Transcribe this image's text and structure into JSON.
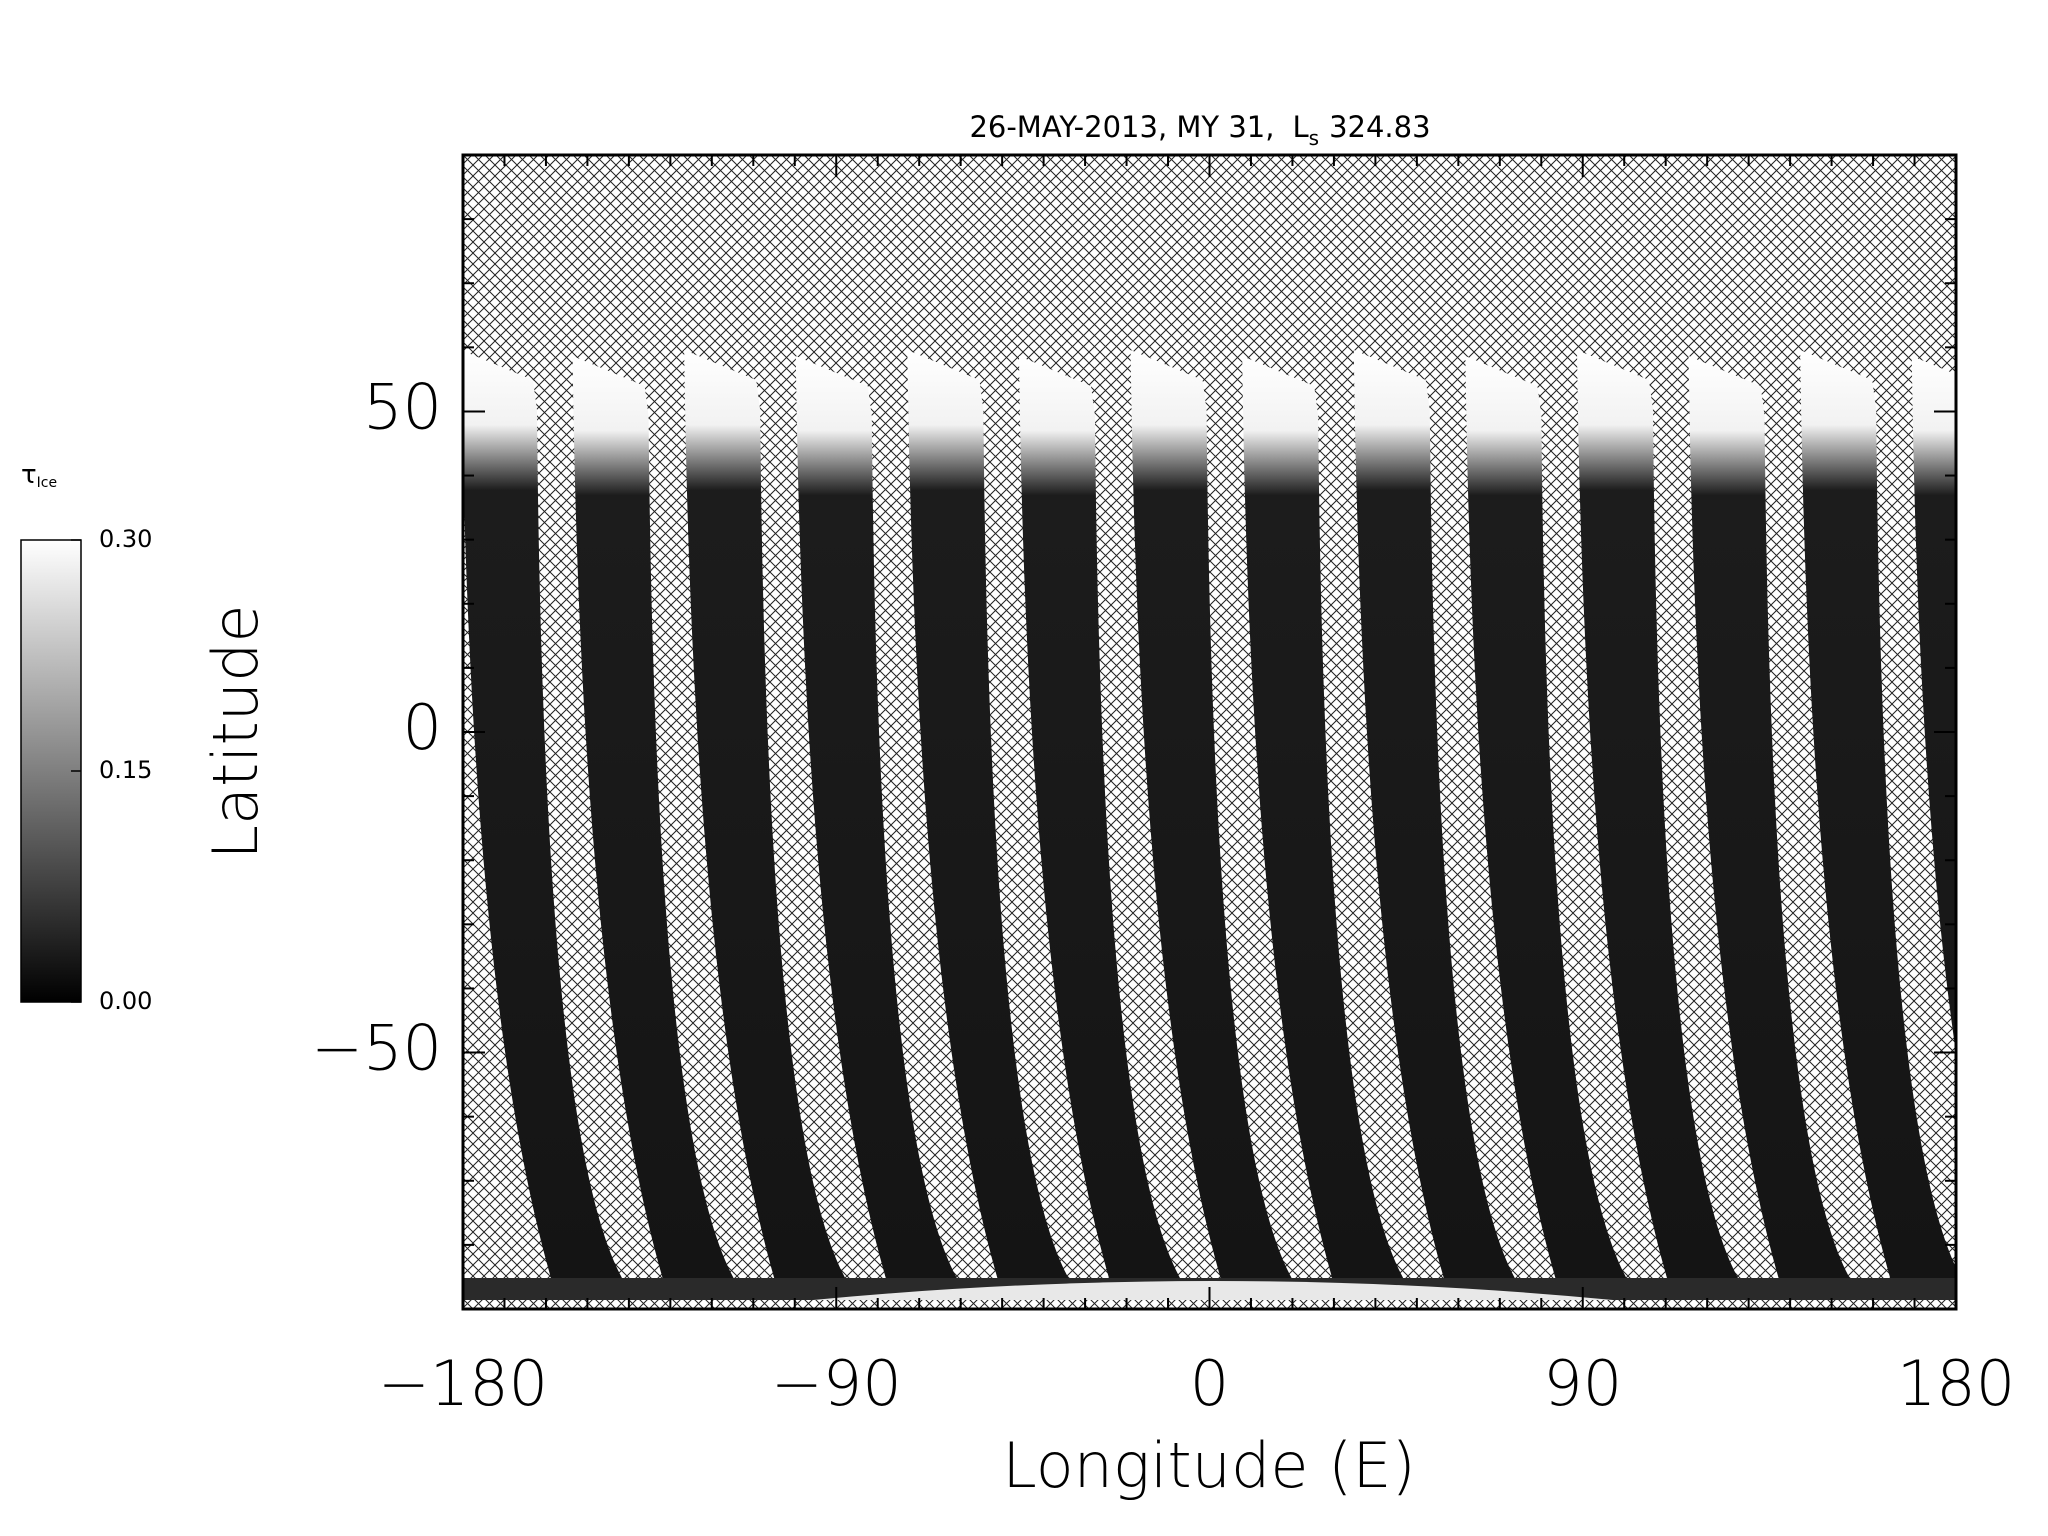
{
  "chart_data": {
    "type": "map",
    "title": [
      "26-MAY-2013, MY 31,",
      "L",
      "s",
      "324.83"
    ],
    "xlabel": "Longitude (E)",
    "ylabel": "Latitude",
    "xlim": [
      -180,
      180
    ],
    "ylim": [
      -90,
      90
    ],
    "xticks": [
      {
        "value": -180,
        "label": "−180"
      },
      {
        "value": -90,
        "label": "−90"
      },
      0,
      90,
      180
    ],
    "yticks": [
      {
        "value": -50,
        "label": "−50"
      },
      0,
      50
    ],
    "xminorticks": [
      -170,
      -160,
      -150,
      -140,
      -130,
      -120,
      -110,
      -100,
      -80,
      -70,
      -60,
      -50,
      -40,
      -30,
      -20,
      -10,
      10,
      20,
      30,
      40,
      50,
      60,
      70,
      80,
      100,
      110,
      120,
      130,
      140,
      150,
      160,
      170
    ],
    "yminorticks": [
      -80,
      -70,
      -60,
      -40,
      -30,
      -20,
      -10,
      10,
      20,
      30,
      40,
      60,
      70,
      80
    ],
    "colorbar": {
      "label": "τ",
      "label_subscript": "Ice",
      "range": [
        0,
        0.3
      ],
      "ticks": [
        {
          "value": 0,
          "label": "0.00"
        },
        {
          "value": 0.15,
          "label": "0.15"
        },
        {
          "value": 0.3,
          "label": "0.30"
        }
      ],
      "colors": [
        "#000000",
        "#ffffff"
      ]
    }
  }
}
